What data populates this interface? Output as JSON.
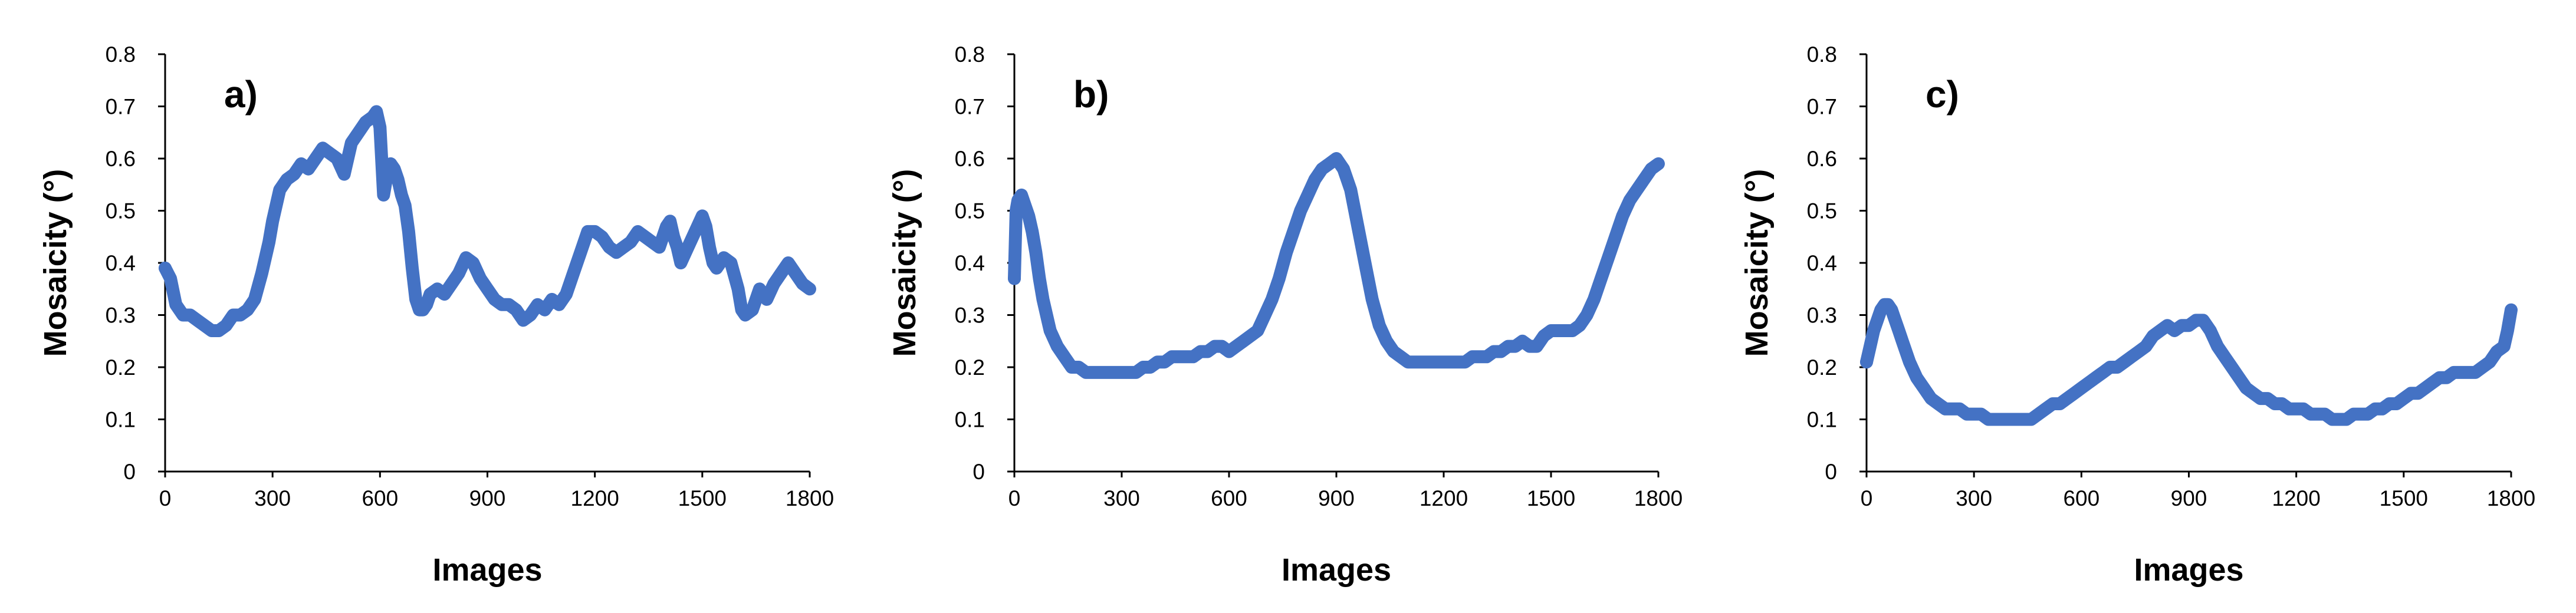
{
  "series_color": "#4472C4",
  "chart_data": [
    {
      "type": "line",
      "panel_label": "a)",
      "xlabel": "Images",
      "ylabel": "Mosaicity (°)",
      "xlim": [
        0,
        1800
      ],
      "ylim": [
        0,
        0.8
      ],
      "x_ticks": [
        "0",
        "300",
        "600",
        "900",
        "1200",
        "1500",
        "1800"
      ],
      "y_ticks": [
        "0",
        "0.1",
        "0.2",
        "0.3",
        "0.4",
        "0.5",
        "0.6",
        "0.7",
        "0.8"
      ],
      "grid": false,
      "legend": "none",
      "x": [
        0,
        15,
        30,
        50,
        70,
        90,
        110,
        130,
        150,
        170,
        190,
        210,
        230,
        250,
        270,
        290,
        300,
        320,
        340,
        360,
        380,
        400,
        420,
        440,
        460,
        480,
        500,
        520,
        540,
        560,
        580,
        590,
        600,
        610,
        620,
        630,
        640,
        650,
        660,
        670,
        680,
        690,
        700,
        710,
        720,
        730,
        740,
        760,
        780,
        800,
        820,
        840,
        860,
        880,
        900,
        920,
        940,
        960,
        980,
        1000,
        1020,
        1040,
        1060,
        1080,
        1100,
        1120,
        1140,
        1160,
        1180,
        1200,
        1220,
        1240,
        1260,
        1280,
        1300,
        1320,
        1340,
        1360,
        1380,
        1400,
        1410,
        1420,
        1430,
        1440,
        1460,
        1480,
        1500,
        1510,
        1520,
        1530,
        1540,
        1560,
        1580,
        1600,
        1610,
        1620,
        1640,
        1660,
        1680,
        1700,
        1720,
        1740,
        1760,
        1780,
        1800
      ],
      "y": [
        0.39,
        0.37,
        0.32,
        0.3,
        0.3,
        0.29,
        0.28,
        0.27,
        0.27,
        0.28,
        0.3,
        0.3,
        0.31,
        0.33,
        0.38,
        0.44,
        0.48,
        0.54,
        0.56,
        0.57,
        0.59,
        0.58,
        0.6,
        0.62,
        0.61,
        0.6,
        0.57,
        0.63,
        0.65,
        0.67,
        0.68,
        0.69,
        0.66,
        0.53,
        0.57,
        0.59,
        0.58,
        0.56,
        0.53,
        0.51,
        0.46,
        0.39,
        0.33,
        0.31,
        0.31,
        0.32,
        0.34,
        0.35,
        0.34,
        0.36,
        0.38,
        0.41,
        0.4,
        0.37,
        0.35,
        0.33,
        0.32,
        0.32,
        0.31,
        0.29,
        0.3,
        0.32,
        0.31,
        0.33,
        0.32,
        0.34,
        0.38,
        0.42,
        0.46,
        0.46,
        0.45,
        0.43,
        0.42,
        0.43,
        0.44,
        0.46,
        0.45,
        0.44,
        0.43,
        0.47,
        0.48,
        0.45,
        0.43,
        0.4,
        0.43,
        0.46,
        0.49,
        0.47,
        0.43,
        0.4,
        0.39,
        0.41,
        0.4,
        0.35,
        0.31,
        0.3,
        0.31,
        0.35,
        0.33,
        0.36,
        0.38,
        0.4,
        0.38,
        0.36,
        0.35
      ]
    },
    {
      "type": "line",
      "panel_label": "b)",
      "xlabel": "Images",
      "ylabel": "Mosaicity (°)",
      "xlim": [
        0,
        1800
      ],
      "ylim": [
        0,
        0.8
      ],
      "x_ticks": [
        "0",
        "300",
        "600",
        "900",
        "1200",
        "1500",
        "1800"
      ],
      "y_ticks": [
        "0",
        "0.1",
        "0.2",
        "0.3",
        "0.4",
        "0.5",
        "0.6",
        "0.7",
        "0.8"
      ],
      "grid": false,
      "legend": "none",
      "x": [
        0,
        5,
        10,
        20,
        30,
        40,
        50,
        60,
        70,
        80,
        90,
        100,
        120,
        140,
        160,
        180,
        200,
        220,
        240,
        260,
        280,
        300,
        320,
        340,
        360,
        380,
        400,
        420,
        440,
        460,
        480,
        500,
        520,
        540,
        560,
        580,
        600,
        620,
        640,
        660,
        680,
        700,
        720,
        740,
        760,
        780,
        800,
        820,
        840,
        860,
        880,
        900,
        920,
        940,
        960,
        980,
        1000,
        1020,
        1040,
        1060,
        1080,
        1100,
        1120,
        1140,
        1160,
        1180,
        1200,
        1220,
        1240,
        1260,
        1280,
        1300,
        1320,
        1340,
        1360,
        1380,
        1400,
        1420,
        1440,
        1460,
        1480,
        1500,
        1520,
        1540,
        1560,
        1580,
        1600,
        1620,
        1640,
        1660,
        1680,
        1700,
        1720,
        1740,
        1760,
        1780,
        1800
      ],
      "y": [
        0.37,
        0.5,
        0.52,
        0.53,
        0.51,
        0.49,
        0.46,
        0.42,
        0.37,
        0.33,
        0.3,
        0.27,
        0.24,
        0.22,
        0.2,
        0.2,
        0.19,
        0.19,
        0.19,
        0.19,
        0.19,
        0.19,
        0.19,
        0.19,
        0.2,
        0.2,
        0.21,
        0.21,
        0.22,
        0.22,
        0.22,
        0.22,
        0.23,
        0.23,
        0.24,
        0.24,
        0.23,
        0.24,
        0.25,
        0.26,
        0.27,
        0.3,
        0.33,
        0.37,
        0.42,
        0.46,
        0.5,
        0.53,
        0.56,
        0.58,
        0.59,
        0.6,
        0.58,
        0.54,
        0.47,
        0.4,
        0.33,
        0.28,
        0.25,
        0.23,
        0.22,
        0.21,
        0.21,
        0.21,
        0.21,
        0.21,
        0.21,
        0.21,
        0.21,
        0.21,
        0.22,
        0.22,
        0.22,
        0.23,
        0.23,
        0.24,
        0.24,
        0.25,
        0.24,
        0.24,
        0.26,
        0.27,
        0.27,
        0.27,
        0.27,
        0.28,
        0.3,
        0.33,
        0.37,
        0.41,
        0.45,
        0.49,
        0.52,
        0.54,
        0.56,
        0.58,
        0.59
      ]
    },
    {
      "type": "line",
      "panel_label": "c)",
      "xlabel": "Images",
      "ylabel": "Mosaicity (°)",
      "xlim": [
        0,
        1800
      ],
      "ylim": [
        0,
        0.8
      ],
      "x_ticks": [
        "0",
        "300",
        "600",
        "900",
        "1200",
        "1500",
        "1800"
      ],
      "y_ticks": [
        "0",
        "0.1",
        "0.2",
        "0.3",
        "0.4",
        "0.5",
        "0.6",
        "0.7",
        "0.8"
      ],
      "grid": false,
      "legend": "none",
      "x": [
        0,
        10,
        20,
        30,
        40,
        50,
        60,
        70,
        80,
        90,
        100,
        120,
        140,
        160,
        180,
        200,
        220,
        240,
        260,
        280,
        300,
        320,
        340,
        360,
        380,
        400,
        420,
        440,
        460,
        480,
        500,
        520,
        540,
        560,
        580,
        600,
        620,
        640,
        660,
        680,
        700,
        720,
        740,
        760,
        780,
        800,
        820,
        840,
        860,
        880,
        900,
        920,
        940,
        960,
        980,
        1000,
        1020,
        1040,
        1060,
        1080,
        1100,
        1120,
        1140,
        1160,
        1180,
        1200,
        1220,
        1240,
        1260,
        1280,
        1300,
        1320,
        1340,
        1360,
        1380,
        1400,
        1420,
        1440,
        1460,
        1480,
        1500,
        1520,
        1540,
        1560,
        1580,
        1600,
        1620,
        1640,
        1660,
        1680,
        1700,
        1720,
        1740,
        1760,
        1780,
        1790,
        1800
      ],
      "y": [
        0.21,
        0.24,
        0.27,
        0.29,
        0.31,
        0.32,
        0.32,
        0.31,
        0.29,
        0.27,
        0.25,
        0.21,
        0.18,
        0.16,
        0.14,
        0.13,
        0.12,
        0.12,
        0.12,
        0.11,
        0.11,
        0.11,
        0.1,
        0.1,
        0.1,
        0.1,
        0.1,
        0.1,
        0.1,
        0.11,
        0.12,
        0.13,
        0.13,
        0.14,
        0.15,
        0.16,
        0.17,
        0.18,
        0.19,
        0.2,
        0.2,
        0.21,
        0.22,
        0.23,
        0.24,
        0.26,
        0.27,
        0.28,
        0.27,
        0.28,
        0.28,
        0.29,
        0.29,
        0.27,
        0.24,
        0.22,
        0.2,
        0.18,
        0.16,
        0.15,
        0.14,
        0.14,
        0.13,
        0.13,
        0.12,
        0.12,
        0.12,
        0.11,
        0.11,
        0.11,
        0.1,
        0.1,
        0.1,
        0.11,
        0.11,
        0.11,
        0.12,
        0.12,
        0.13,
        0.13,
        0.14,
        0.15,
        0.15,
        0.16,
        0.17,
        0.18,
        0.18,
        0.19,
        0.19,
        0.19,
        0.19,
        0.2,
        0.21,
        0.23,
        0.24,
        0.27,
        0.31
      ]
    }
  ]
}
